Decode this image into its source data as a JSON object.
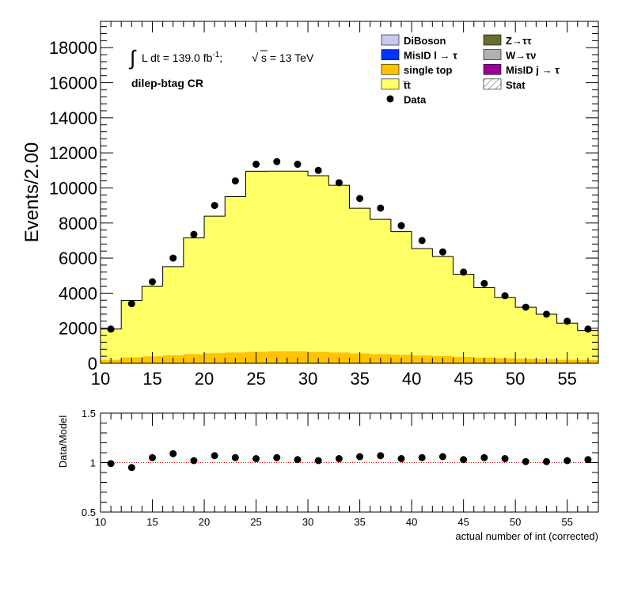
{
  "chart_data": [
    {
      "type": "bar",
      "stacked": true,
      "ylabel": "Events/2.00",
      "ylim": [
        0,
        19500
      ],
      "xlim": [
        10,
        58
      ],
      "y_ticks": [
        0,
        2000,
        4000,
        6000,
        8000,
        10000,
        12000,
        14000,
        16000,
        18000
      ],
      "x_ticks": [
        10,
        15,
        20,
        25,
        30,
        35,
        40,
        45,
        50,
        55
      ],
      "annotations": {
        "lumi_prefix": "L dt = 139.0 fb",
        "lumi_sup": "-1",
        "lumi_mid": ";",
        "energy": "s = 13 TeV",
        "region": "dilep-btag CR"
      },
      "bin_edges": [
        10,
        12,
        14,
        16,
        18,
        20,
        22,
        24,
        26,
        28,
        30,
        32,
        34,
        36,
        38,
        40,
        42,
        44,
        46,
        48,
        50,
        52,
        54,
        56,
        58
      ],
      "series": [
        {
          "name": "single top",
          "color": "#ffc300",
          "values": [
            200,
            340,
            400,
            460,
            530,
            580,
            620,
            660,
            680,
            680,
            650,
            620,
            570,
            530,
            490,
            450,
            410,
            370,
            330,
            290,
            260,
            230,
            200,
            180
          ]
        },
        {
          "name": "t̅t",
          "color": "#ffff66",
          "values": [
            1750,
            3250,
            4000,
            5050,
            6620,
            7810,
            8880,
            10290,
            10280,
            10280,
            10050,
            9530,
            8270,
            7680,
            7020,
            6090,
            5680,
            4700,
            3980,
            3470,
            2940,
            2570,
            2090,
            1690
          ]
        }
      ],
      "data_points": {
        "name": "Data",
        "x": [
          11,
          13,
          15,
          17,
          19,
          21,
          23,
          25,
          27,
          29,
          31,
          33,
          35,
          37,
          39,
          41,
          43,
          45,
          47,
          49,
          51,
          53,
          55,
          57
        ],
        "y": [
          1950,
          3400,
          4650,
          6000,
          7350,
          9000,
          10400,
          11350,
          11500,
          11350,
          11000,
          10300,
          9400,
          8850,
          7850,
          7000,
          6350,
          5200,
          4550,
          3850,
          3200,
          2800,
          2400,
          1950
        ]
      },
      "legend": {
        "placement": "top-right",
        "entries": [
          {
            "label": "DiBoson",
            "color": "#c8c8f0",
            "style": "box"
          },
          {
            "label": "Z→ττ",
            "color": "#6b6b32",
            "style": "box"
          },
          {
            "label": "MisID l → τ",
            "color": "#0033ff",
            "style": "box"
          },
          {
            "label": "W→τν",
            "color": "#b0b0b0",
            "style": "box"
          },
          {
            "label": "single top",
            "color": "#ffc300",
            "style": "box"
          },
          {
            "label": "MisID j → τ",
            "color": "#990099",
            "style": "box"
          },
          {
            "label": "t̅t",
            "color": "#ffff66",
            "style": "box"
          },
          {
            "label": "Stat",
            "color": "#555555",
            "style": "hatch"
          },
          {
            "label": "Data",
            "color": "#000000",
            "style": "marker"
          }
        ]
      }
    },
    {
      "type": "scatter",
      "ylabel": "Data/Model",
      "xlabel": "actual number of int (corrected)",
      "ylim": [
        0.5,
        1.5
      ],
      "xlim": [
        10,
        58
      ],
      "y_ticks": [
        0.5,
        1,
        1.5
      ],
      "y_tick_labels": [
        "0.5",
        "1",
        "1.5"
      ],
      "x_ticks": [
        10,
        15,
        20,
        25,
        30,
        35,
        40,
        45,
        50,
        55
      ],
      "reference_line": 1,
      "x": [
        11,
        13,
        15,
        17,
        19,
        21,
        23,
        25,
        27,
        29,
        31,
        33,
        35,
        37,
        39,
        41,
        43,
        45,
        47,
        49,
        51,
        53,
        55,
        57
      ],
      "y": [
        0.99,
        0.95,
        1.05,
        1.09,
        1.02,
        1.07,
        1.05,
        1.04,
        1.05,
        1.03,
        1.02,
        1.04,
        1.06,
        1.07,
        1.04,
        1.05,
        1.06,
        1.03,
        1.05,
        1.04,
        1.01,
        1.01,
        1.02,
        1.03
      ]
    }
  ]
}
